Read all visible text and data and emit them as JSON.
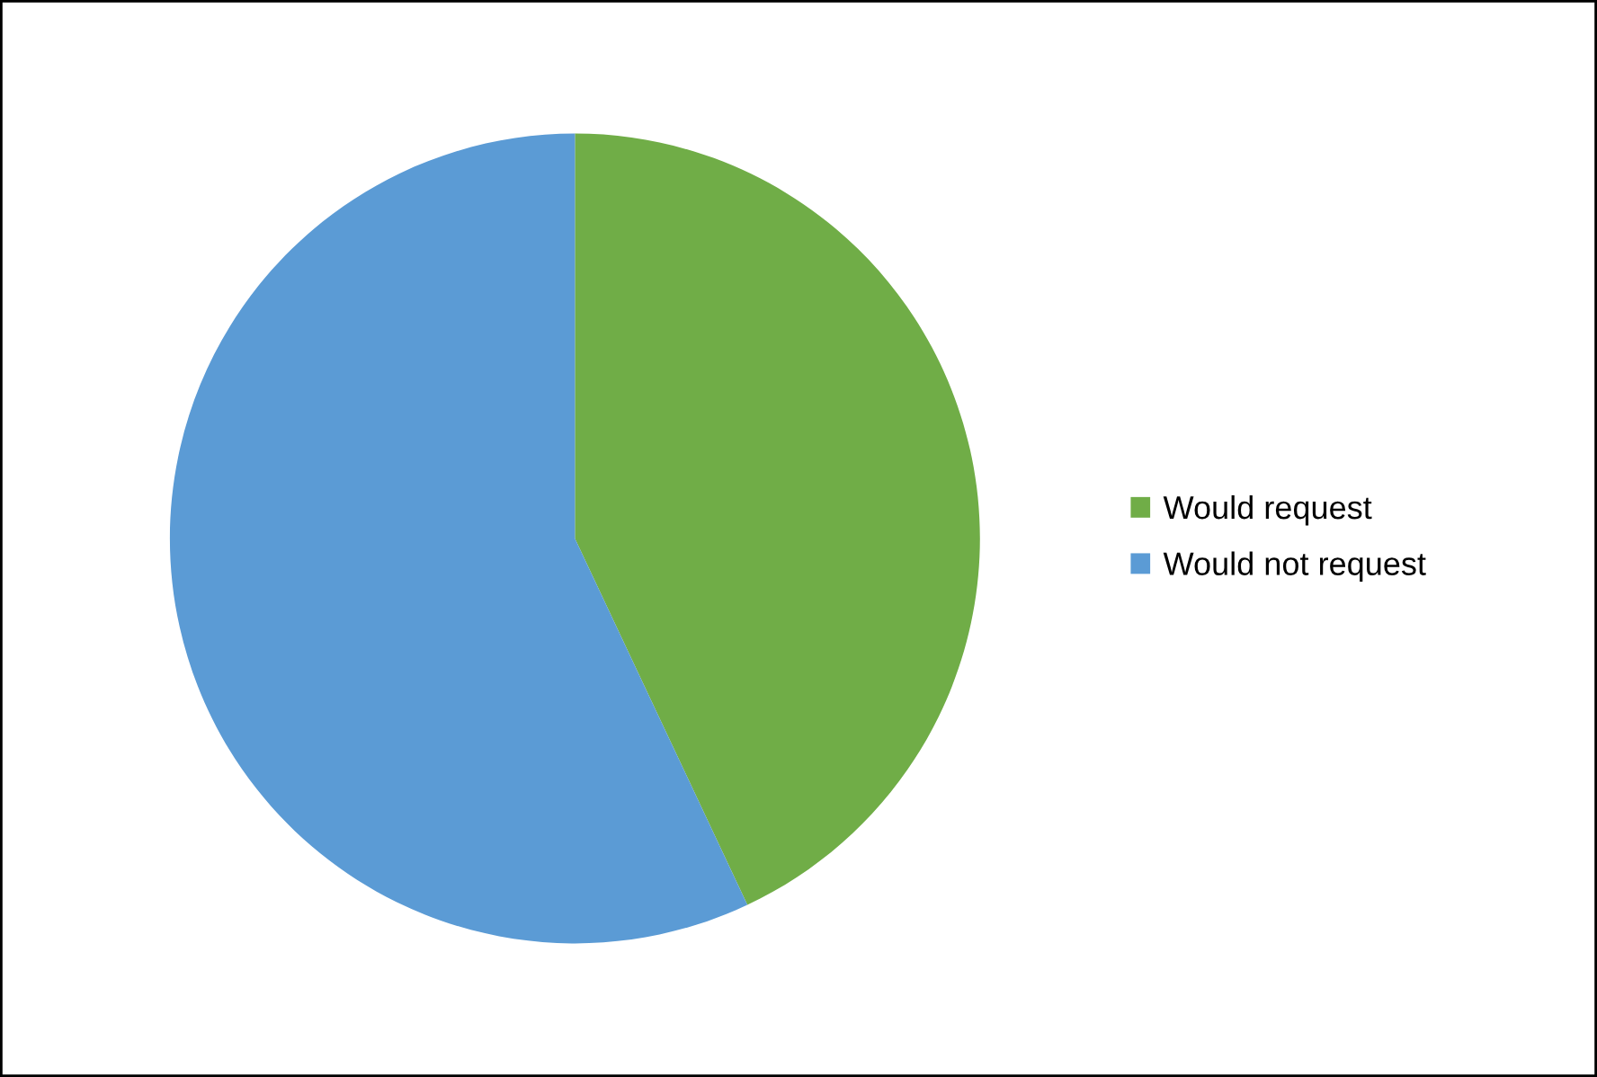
{
  "chart_data": {
    "type": "pie",
    "categories": [
      "Would request",
      "Would not request"
    ],
    "values": [
      43,
      57
    ],
    "colors": [
      "#70ad47",
      "#5b9bd5"
    ],
    "legend": "right"
  }
}
